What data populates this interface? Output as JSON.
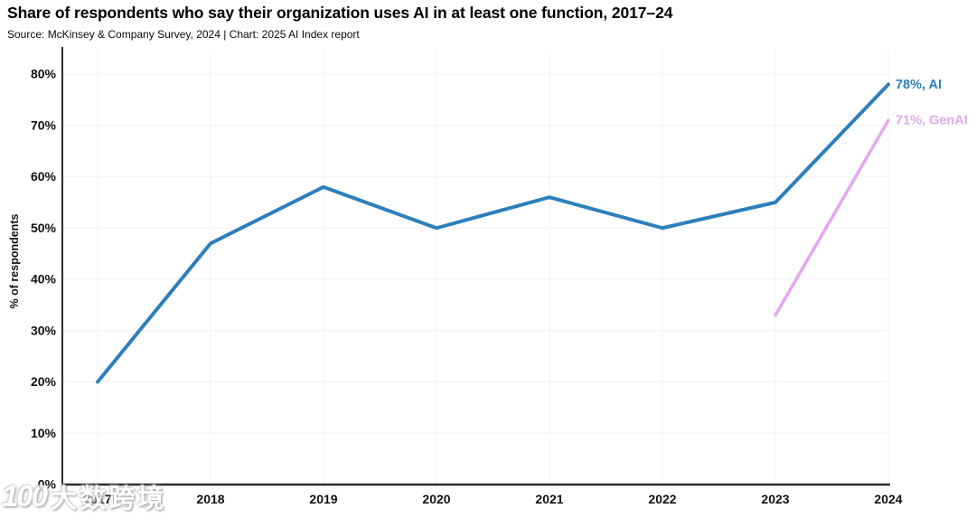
{
  "title": "Share of respondents who say their organization uses AI in at least one function, 2017–24",
  "subtitle": "Source: McKinsey & Company Survey, 2024 | Chart: 2025 AI Index report",
  "watermark": {
    "logo": "100",
    "text": "大数跨境"
  },
  "chart_data": {
    "type": "line",
    "title": "Share of respondents who say their organization uses AI in at least one function, 2017–24",
    "source": "Source: McKinsey & Company Survey, 2024 | Chart: 2025 AI Index report",
    "xlabel": "",
    "ylabel": "% of respondents",
    "ylim": [
      0,
      80
    ],
    "ytick_step": 10,
    "grid": true,
    "legend_position": "end-of-line labels, right of last points",
    "x": [
      2017,
      2018,
      2019,
      2020,
      2021,
      2022,
      2023,
      2024
    ],
    "xticks": [
      "2017",
      "2018",
      "2019",
      "2020",
      "2021",
      "2022",
      "2023",
      "2024"
    ],
    "yticks": [
      "0%",
      "10%",
      "20%",
      "30%",
      "40%",
      "50%",
      "60%",
      "70%",
      "80%"
    ],
    "series": [
      {
        "name": "AI",
        "color": "#2d7fbc",
        "x": [
          2017,
          2018,
          2019,
          2020,
          2021,
          2022,
          2023,
          2024
        ],
        "values": [
          20,
          47,
          58,
          50,
          56,
          50,
          55,
          78
        ],
        "end_label": "78%, AI"
      },
      {
        "name": "GenAI",
        "color": "#e4a7f2",
        "x": [
          2023,
          2024
        ],
        "values": [
          33,
          71
        ],
        "end_label": "71%, GenAI"
      }
    ]
  },
  "colors": {
    "ai_line": "#2d7fbc",
    "genai_line": "#e4a7f2",
    "grid": "#f6f3f5",
    "axis": "#2d2d2d",
    "text": "#111111",
    "background": "#ffffff"
  }
}
